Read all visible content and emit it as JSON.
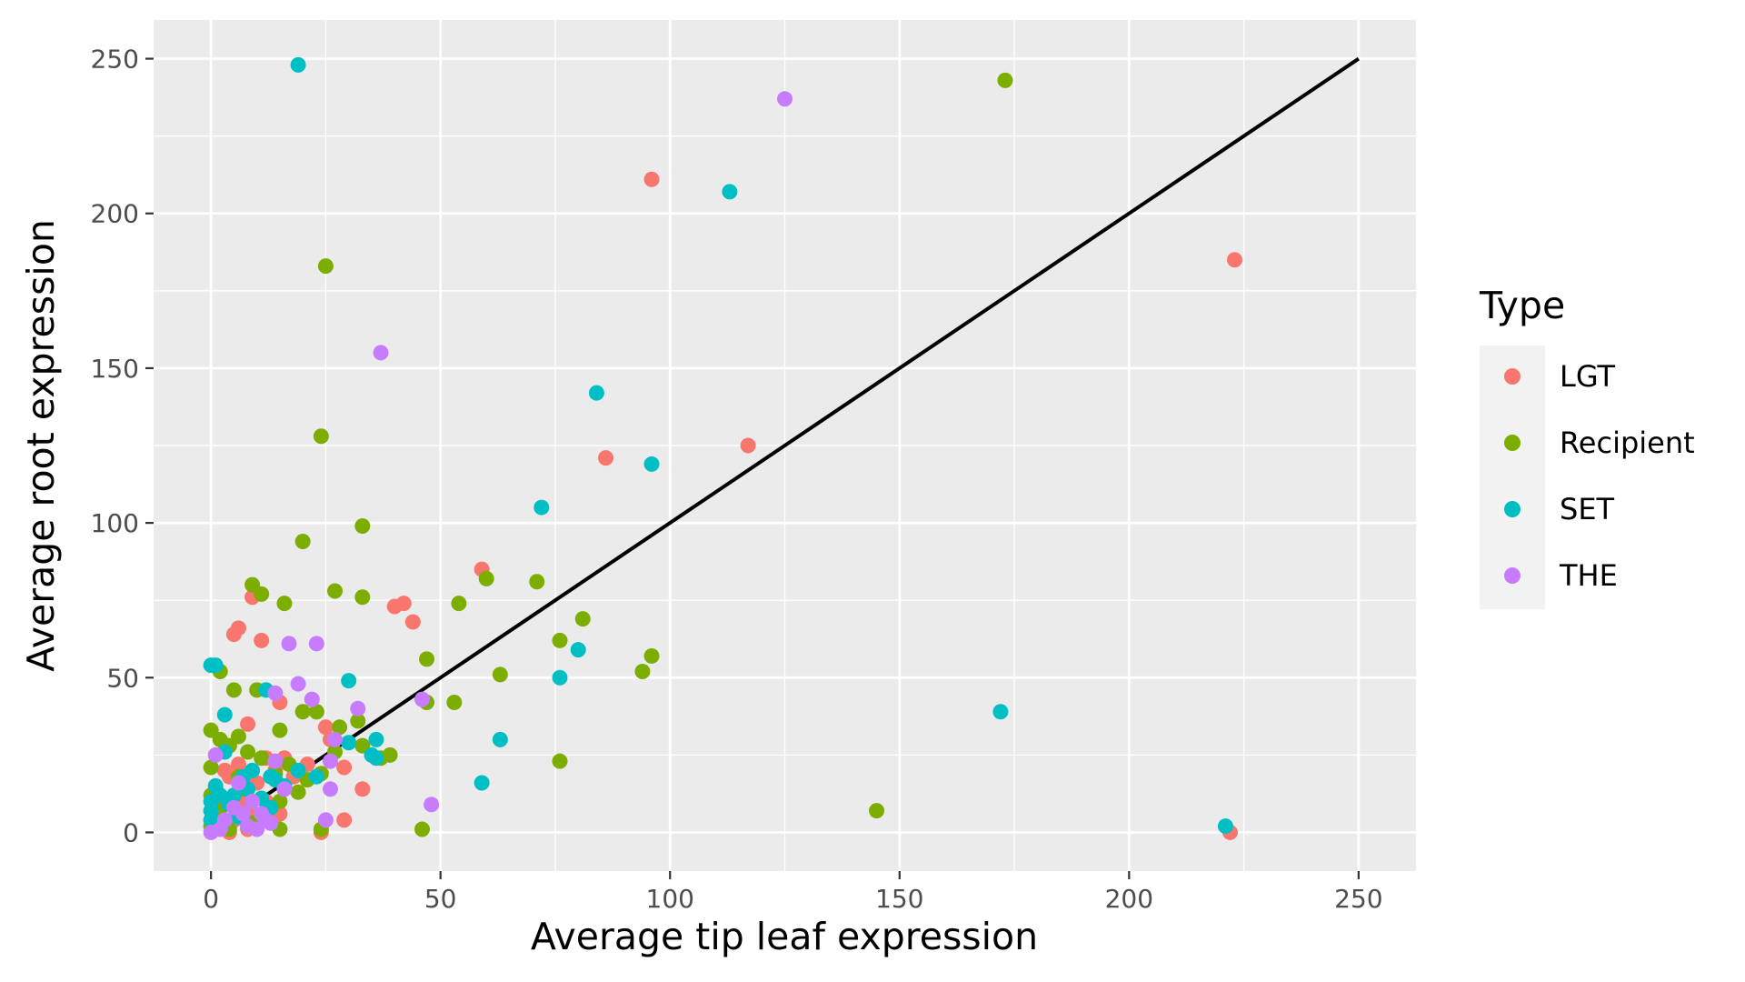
{
  "chart_data": {
    "type": "scatter",
    "xlabel": "Average tip leaf expression",
    "ylabel": "Average root expression",
    "xlim": [
      -12.5,
      262.5
    ],
    "ylim": [
      -12.5,
      262.5
    ],
    "x_ticks": [
      0,
      50,
      100,
      150,
      200,
      250
    ],
    "y_ticks": [
      0,
      50,
      100,
      150,
      200,
      250
    ],
    "x_tick_labels": [
      "0",
      "50",
      "100",
      "150",
      "200",
      "250"
    ],
    "y_tick_labels": [
      "0",
      "50",
      "100",
      "150",
      "200",
      "250"
    ],
    "grid": true,
    "reference_line": {
      "x": [
        0,
        250
      ],
      "y": [
        0,
        250
      ],
      "color": "#000000"
    },
    "legend": {
      "title": "Type",
      "placement": "right"
    },
    "series": [
      {
        "name": "LGT",
        "color": "#F8766D",
        "points": [
          [
            96,
            211
          ],
          [
            223,
            185
          ],
          [
            222,
            0
          ],
          [
            86,
            121
          ],
          [
            117,
            125
          ],
          [
            59,
            85
          ],
          [
            42,
            74
          ],
          [
            40,
            73
          ],
          [
            44,
            68
          ],
          [
            5,
            64
          ],
          [
            6,
            66
          ],
          [
            9,
            76
          ],
          [
            11,
            62
          ],
          [
            15,
            42
          ],
          [
            8,
            35
          ],
          [
            23,
            39
          ],
          [
            25,
            34
          ],
          [
            26,
            30
          ],
          [
            29,
            21
          ],
          [
            33,
            14
          ],
          [
            29,
            4
          ],
          [
            24,
            0
          ],
          [
            16,
            24
          ],
          [
            12,
            24
          ],
          [
            3,
            20
          ],
          [
            6,
            22
          ],
          [
            4,
            18
          ],
          [
            10,
            16
          ],
          [
            14,
            20
          ],
          [
            16,
            14
          ],
          [
            18,
            18
          ],
          [
            21,
            22
          ],
          [
            2,
            8
          ],
          [
            5,
            4
          ],
          [
            7,
            10
          ],
          [
            9,
            6
          ],
          [
            12,
            10
          ],
          [
            15,
            6
          ],
          [
            4,
            0
          ],
          [
            8,
            1
          ],
          [
            3,
            3
          ],
          [
            1,
            5
          ]
        ]
      },
      {
        "name": "Recipient",
        "color": "#7CAE00",
        "points": [
          [
            173,
            243
          ],
          [
            25,
            183
          ],
          [
            24,
            128
          ],
          [
            33,
            99
          ],
          [
            20,
            94
          ],
          [
            9,
            80
          ],
          [
            11,
            77
          ],
          [
            16,
            74
          ],
          [
            27,
            78
          ],
          [
            33,
            76
          ],
          [
            54,
            74
          ],
          [
            60,
            82
          ],
          [
            71,
            81
          ],
          [
            81,
            69
          ],
          [
            76,
            62
          ],
          [
            96,
            57
          ],
          [
            94,
            52
          ],
          [
            63,
            51
          ],
          [
            47,
            56
          ],
          [
            53,
            42
          ],
          [
            47,
            42
          ],
          [
            76,
            23
          ],
          [
            39,
            25
          ],
          [
            46,
            1
          ],
          [
            145,
            7
          ],
          [
            2,
            52
          ],
          [
            5,
            46
          ],
          [
            10,
            46
          ],
          [
            0,
            33
          ],
          [
            2,
            30
          ],
          [
            4,
            28
          ],
          [
            6,
            31
          ],
          [
            8,
            26
          ],
          [
            15,
            33
          ],
          [
            20,
            39
          ],
          [
            23,
            39
          ],
          [
            28,
            34
          ],
          [
            32,
            36
          ],
          [
            33,
            28
          ],
          [
            37,
            24
          ],
          [
            0,
            21
          ],
          [
            6,
            18
          ],
          [
            11,
            24
          ],
          [
            14,
            19
          ],
          [
            17,
            22
          ],
          [
            21,
            17
          ],
          [
            24,
            19
          ],
          [
            27,
            26
          ],
          [
            0,
            12
          ],
          [
            3,
            9
          ],
          [
            7,
            14
          ],
          [
            12,
            7
          ],
          [
            15,
            10
          ],
          [
            19,
            13
          ],
          [
            0,
            2
          ],
          [
            4,
            1
          ],
          [
            15,
            1
          ],
          [
            24,
            1
          ],
          [
            9,
            3
          ],
          [
            2,
            5
          ]
        ]
      },
      {
        "name": "SET",
        "color": "#00BFC4",
        "points": [
          [
            19,
            248
          ],
          [
            113,
            207
          ],
          [
            84,
            142
          ],
          [
            96,
            119
          ],
          [
            72,
            105
          ],
          [
            80,
            59
          ],
          [
            76,
            50
          ],
          [
            63,
            30
          ],
          [
            59,
            16
          ],
          [
            172,
            39
          ],
          [
            221,
            2
          ],
          [
            0,
            54
          ],
          [
            1,
            54
          ],
          [
            3,
            38
          ],
          [
            12,
            46
          ],
          [
            30,
            49
          ],
          [
            30,
            29
          ],
          [
            36,
            30
          ],
          [
            35,
            25
          ],
          [
            36,
            24
          ],
          [
            3,
            26
          ],
          [
            7,
            18
          ],
          [
            9,
            20
          ],
          [
            13,
            18
          ],
          [
            16,
            15
          ],
          [
            19,
            20
          ],
          [
            23,
            18
          ],
          [
            1,
            15
          ],
          [
            0,
            10
          ],
          [
            0,
            7
          ],
          [
            2,
            12
          ],
          [
            4,
            9
          ],
          [
            6,
            5
          ],
          [
            8,
            14
          ],
          [
            11,
            11
          ],
          [
            13,
            8
          ],
          [
            0,
            4
          ],
          [
            2,
            2
          ],
          [
            5,
            12
          ],
          [
            14,
            17
          ]
        ]
      },
      {
        "name": "THE",
        "color": "#C77CFF",
        "points": [
          [
            125,
            237
          ],
          [
            37,
            155
          ],
          [
            17,
            61
          ],
          [
            23,
            61
          ],
          [
            19,
            48
          ],
          [
            14,
            45
          ],
          [
            22,
            43
          ],
          [
            32,
            40
          ],
          [
            46,
            43
          ],
          [
            27,
            30
          ],
          [
            26,
            23
          ],
          [
            48,
            9
          ],
          [
            26,
            14
          ],
          [
            25,
            4
          ],
          [
            14,
            23
          ],
          [
            1,
            25
          ],
          [
            6,
            16
          ],
          [
            9,
            10
          ],
          [
            11,
            6
          ],
          [
            13,
            3
          ],
          [
            3,
            4
          ],
          [
            5,
            8
          ],
          [
            8,
            2
          ],
          [
            10,
            1
          ],
          [
            2,
            1
          ],
          [
            0,
            0
          ],
          [
            12,
            4
          ],
          [
            16,
            14
          ],
          [
            7,
            6
          ]
        ]
      }
    ]
  }
}
